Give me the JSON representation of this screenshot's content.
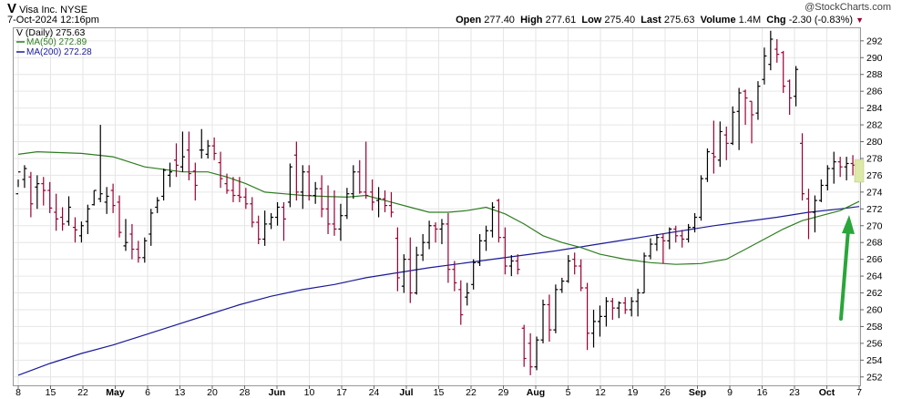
{
  "header": {
    "symbol": "V",
    "company": "Visa Inc.",
    "exchange": "NYSE",
    "datetime": "7-Oct-2024 12:16pm",
    "source": "@StockCharts.com",
    "open_label": "Open",
    "open": "277.40",
    "high_label": "High",
    "high": "277.61",
    "low_label": "Low",
    "low": "275.40",
    "last_label": "Last",
    "last": "275.63",
    "volume_label": "Volume",
    "volume": "1.4M",
    "chg_label": "Chg",
    "chg": "-2.30 (-0.83%)"
  },
  "legend": {
    "price": "V (Daily) 275.63",
    "ma50": "MA(50) 272.89",
    "ma200": "MA(200) 272.28"
  },
  "colors": {
    "up_bar": "#000000",
    "down_bar": "#990033",
    "ma50": "#2e7d20",
    "ma200": "#1a1a99",
    "arrow": "#2aa63a",
    "highlight": "#dde9a9",
    "grid": "#e6e6e6"
  },
  "chart_data": {
    "type": "ohlc",
    "ylim": [
      251,
      293.5
    ],
    "y_ticks": [
      252,
      254,
      256,
      258,
      260,
      262,
      264,
      266,
      268,
      270,
      272,
      274,
      276,
      278,
      280,
      282,
      284,
      286,
      288,
      290,
      292
    ],
    "x_ticks": [
      "8",
      "15",
      "22",
      "May",
      "6",
      "13",
      "20",
      "28",
      "Jun",
      "10",
      "17",
      "24",
      "Jul",
      "15",
      "22",
      "29",
      "Aug",
      "5",
      "12",
      "19",
      "26",
      "Sep",
      "9",
      "16",
      "23",
      "Oct",
      "7"
    ],
    "bold_ticks": [
      "May",
      "Jun",
      "Jul",
      "Aug",
      "Sep",
      "Oct"
    ],
    "bars": [
      [
        273.8,
        274.6,
        275.5,
        276.4
      ],
      [
        275.5,
        277.2,
        274.5,
        276.8
      ],
      [
        275.8,
        276.4,
        271.0,
        272.6
      ],
      [
        274.6,
        276.0,
        272.0,
        275.0
      ],
      [
        275.0,
        275.8,
        272.4,
        274.2
      ],
      [
        274.2,
        275.2,
        271.5,
        272.1
      ],
      [
        271.6,
        273.8,
        269.4,
        270.8
      ],
      [
        271.0,
        272.2,
        269.4,
        270.2
      ],
      [
        270.5,
        273.5,
        270.0,
        272.2
      ],
      [
        269.8,
        271.0,
        268.0,
        269.5
      ],
      [
        268.8,
        270.5,
        268.0,
        270.0
      ],
      [
        270.5,
        272.5,
        269.0,
        272.0
      ],
      [
        272.5,
        274.2,
        272.4,
        274.2
      ],
      [
        273.2,
        282.0,
        272.8,
        273.8
      ],
      [
        272.8,
        274.6,
        271.4,
        273.5
      ],
      [
        274.2,
        275.0,
        271.5,
        272.4
      ],
      [
        272.8,
        273.6,
        268.6,
        269.2
      ],
      [
        267.6,
        270.8,
        267.0,
        268.0
      ],
      [
        269.0,
        270.2,
        266.0,
        267.2
      ],
      [
        267.2,
        268.2,
        265.6,
        266.2
      ],
      [
        266.2,
        268.6,
        265.6,
        268.2
      ],
      [
        269.0,
        272.0,
        267.6,
        271.5
      ],
      [
        272.2,
        273.4,
        271.5,
        273.0
      ],
      [
        273.5,
        276.8,
        273.0,
        276.6
      ],
      [
        276.0,
        277.5,
        274.6,
        276.4
      ],
      [
        277.8,
        279.8,
        275.8,
        277.2
      ],
      [
        277.0,
        281.2,
        276.4,
        278.2
      ],
      [
        279.0,
        281.2,
        275.4,
        276.2
      ],
      [
        276.5,
        277.5,
        273.0,
        274.8
      ],
      [
        279.0,
        281.5,
        278.0,
        279.0
      ],
      [
        278.5,
        280.2,
        278.0,
        279.5
      ],
      [
        279.5,
        280.5,
        277.8,
        278.6
      ],
      [
        277.5,
        278.8,
        274.5,
        275.6
      ],
      [
        275.0,
        276.2,
        273.8,
        274.2
      ],
      [
        274.2,
        275.8,
        272.8,
        273.6
      ],
      [
        273.6,
        275.8,
        272.8,
        273.4
      ],
      [
        273.4,
        274.5,
        272.0,
        272.6
      ],
      [
        272.6,
        273.4,
        269.8,
        270.4
      ],
      [
        270.4,
        271.2,
        267.8,
        268.4
      ],
      [
        268.4,
        271.8,
        267.6,
        270.2
      ],
      [
        270.2,
        271.5,
        269.6,
        271.0
      ],
      [
        271.0,
        272.8,
        270.0,
        272.2
      ],
      [
        272.2,
        272.8,
        268.2,
        270.8
      ],
      [
        272.8,
        277.4,
        272.2,
        277.0
      ],
      [
        278.4,
        280.0,
        273.0,
        274.0
      ],
      [
        274.0,
        277.2,
        272.0,
        276.4
      ],
      [
        276.4,
        277.2,
        273.0,
        273.6
      ],
      [
        273.6,
        275.2,
        272.6,
        274.4
      ],
      [
        274.4,
        276.0,
        271.0,
        272.0
      ],
      [
        272.0,
        274.8,
        269.0,
        270.2
      ],
      [
        270.2,
        274.2,
        268.8,
        269.6
      ],
      [
        269.6,
        272.6,
        268.2,
        271.2
      ],
      [
        271.2,
        274.5,
        270.8,
        273.8
      ],
      [
        273.8,
        277.2,
        273.2,
        276.4
      ],
      [
        276.4,
        277.8,
        273.8,
        274.0
      ],
      [
        274.0,
        280.0,
        273.2,
        273.6
      ],
      [
        274.0,
        275.5,
        271.8,
        272.8
      ],
      [
        273.0,
        274.6,
        271.0,
        273.2
      ],
      [
        273.2,
        274.2,
        271.6,
        272.4
      ],
      [
        272.4,
        274.0,
        271.0,
        271.6
      ],
      [
        268.5,
        269.8,
        262.2,
        263.8
      ],
      [
        262.8,
        266.6,
        262.0,
        266.0
      ],
      [
        266.0,
        268.6,
        260.8,
        262.0
      ],
      [
        262.0,
        267.5,
        261.8,
        266.5
      ],
      [
        266.5,
        269.0,
        265.8,
        268.0
      ],
      [
        268.0,
        270.6,
        267.2,
        270.0
      ],
      [
        270.0,
        270.4,
        268.0,
        269.6
      ],
      [
        269.6,
        270.8,
        267.8,
        270.2
      ],
      [
        270.2,
        271.5,
        263.2,
        264.8
      ],
      [
        264.8,
        265.8,
        262.2,
        263.2
      ],
      [
        262.4,
        263.5,
        258.2,
        259.4
      ],
      [
        261.5,
        263.2,
        260.5,
        262.0
      ],
      [
        263.0,
        266.0,
        262.4,
        265.6
      ],
      [
        265.6,
        269.0,
        265.2,
        268.2
      ],
      [
        268.2,
        270.0,
        267.0,
        269.4
      ],
      [
        269.4,
        272.8,
        268.6,
        272.2
      ],
      [
        273.0,
        273.2,
        268.0,
        268.6
      ],
      [
        268.6,
        269.8,
        264.2,
        265.2
      ],
      [
        265.2,
        266.5,
        264.0,
        265.8
      ],
      [
        265.8,
        266.6,
        264.2,
        264.8
      ],
      [
        257.8,
        258.2,
        253.2,
        254.2
      ],
      [
        256.0,
        257.2,
        252.2,
        253.2
      ],
      [
        253.2,
        256.8,
        252.8,
        256.4
      ],
      [
        256.4,
        261.2,
        256.0,
        260.6
      ],
      [
        260.6,
        261.8,
        256.2,
        257.6
      ],
      [
        257.6,
        263.0,
        257.2,
        262.4
      ],
      [
        262.4,
        263.8,
        262.0,
        263.4
      ],
      [
        263.4,
        266.5,
        263.2,
        265.8
      ],
      [
        266.0,
        266.8,
        264.2,
        265.2
      ],
      [
        265.2,
        266.0,
        262.2,
        262.6
      ],
      [
        262.6,
        263.2,
        255.2,
        257.2
      ],
      [
        257.2,
        260.0,
        255.5,
        258.6
      ],
      [
        258.6,
        260.5,
        256.8,
        259.2
      ],
      [
        259.2,
        261.5,
        258.0,
        261.0
      ],
      [
        261.0,
        261.4,
        258.8,
        260.2
      ],
      [
        260.2,
        261.0,
        259.0,
        260.8
      ],
      [
        260.8,
        261.5,
        259.5,
        260.0
      ],
      [
        260.0,
        261.5,
        259.2,
        261.0
      ],
      [
        261.0,
        262.5,
        259.2,
        262.0
      ],
      [
        262.0,
        266.8,
        262.0,
        266.4
      ],
      [
        266.4,
        268.5,
        266.0,
        267.8
      ],
      [
        267.8,
        269.0,
        267.0,
        268.6
      ],
      [
        268.6,
        269.0,
        265.5,
        268.2
      ],
      [
        268.2,
        269.8,
        267.2,
        269.6
      ],
      [
        269.6,
        270.0,
        268.0,
        268.8
      ],
      [
        268.8,
        269.5,
        267.4,
        268.4
      ],
      [
        268.4,
        270.2,
        268.0,
        269.8
      ],
      [
        269.8,
        271.5,
        269.2,
        271.0
      ],
      [
        271.0,
        276.0,
        270.6,
        275.6
      ],
      [
        275.6,
        279.2,
        275.2,
        278.8
      ],
      [
        278.6,
        282.5,
        276.2,
        278.2
      ],
      [
        277.8,
        282.4,
        277.0,
        281.2
      ],
      [
        280.8,
        281.8,
        277.8,
        279.8
      ],
      [
        279.8,
        284.2,
        279.6,
        283.5
      ],
      [
        283.6,
        286.4,
        279.0,
        285.8
      ],
      [
        286.0,
        286.2,
        282.0,
        285.2
      ],
      [
        284.8,
        284.8,
        279.8,
        283.2
      ],
      [
        283.4,
        287.2,
        282.6,
        286.6
      ],
      [
        287.4,
        291.2,
        286.8,
        290.2
      ],
      [
        289.2,
        293.2,
        288.5,
        292.2
      ],
      [
        291.0,
        292.2,
        289.4,
        290.4
      ],
      [
        290.6,
        290.8,
        285.8,
        286.6
      ],
      [
        287.2,
        287.4,
        283.2,
        285.2
      ],
      [
        285.4,
        289.0,
        284.2,
        288.6
      ],
      [
        279.8,
        281.0,
        273.0,
        273.8
      ],
      [
        273.2,
        274.4,
        268.4,
        271.6
      ],
      [
        271.6,
        273.6,
        269.2,
        273.0
      ],
      [
        273.0,
        275.5,
        272.8,
        274.8
      ],
      [
        274.8,
        277.2,
        274.2,
        276.8
      ],
      [
        276.8,
        278.8,
        275.0,
        277.6
      ],
      [
        277.6,
        278.2,
        275.8,
        277.0
      ],
      [
        277.0,
        278.2,
        275.4,
        277.4
      ],
      [
        277.4,
        278.4,
        276.0,
        277.2
      ],
      [
        277.4,
        277.61,
        275.4,
        275.63
      ]
    ],
    "ma50": [
      [
        0,
        278.5
      ],
      [
        3,
        278.8
      ],
      [
        10,
        278.6
      ],
      [
        15,
        278.2
      ],
      [
        20,
        277.0
      ],
      [
        26,
        276.4
      ],
      [
        30,
        276.4
      ],
      [
        33,
        275.8
      ],
      [
        36,
        275.0
      ],
      [
        39,
        274.0
      ],
      [
        42,
        273.8
      ],
      [
        45,
        273.6
      ],
      [
        48,
        273.5
      ],
      [
        52,
        273.4
      ],
      [
        55,
        273.6
      ],
      [
        58,
        273.0
      ],
      [
        62,
        272.2
      ],
      [
        65,
        271.6
      ],
      [
        68,
        271.6
      ],
      [
        71,
        271.8
      ],
      [
        74,
        272.2
      ],
      [
        77,
        271.4
      ],
      [
        80,
        270.2
      ],
      [
        83,
        268.8
      ],
      [
        86,
        268.0
      ],
      [
        89,
        267.4
      ],
      [
        92,
        266.6
      ],
      [
        96,
        266.0
      ],
      [
        100,
        265.6
      ],
      [
        104,
        265.4
      ],
      [
        108,
        265.5
      ],
      [
        112,
        266.0
      ],
      [
        115,
        267.2
      ],
      [
        118,
        268.4
      ],
      [
        121,
        269.6
      ],
      [
        124,
        270.6
      ],
      [
        127,
        271.2
      ],
      [
        130,
        271.8
      ],
      [
        133,
        272.89
      ]
    ],
    "ma200": [
      [
        0,
        252.2
      ],
      [
        5,
        253.6
      ],
      [
        10,
        254.8
      ],
      [
        15,
        255.8
      ],
      [
        20,
        257.0
      ],
      [
        25,
        258.2
      ],
      [
        30,
        259.4
      ],
      [
        35,
        260.6
      ],
      [
        40,
        261.6
      ],
      [
        45,
        262.4
      ],
      [
        50,
        263.0
      ],
      [
        55,
        263.8
      ],
      [
        60,
        264.4
      ],
      [
        65,
        265.0
      ],
      [
        70,
        265.5
      ],
      [
        75,
        266.0
      ],
      [
        80,
        266.5
      ],
      [
        85,
        267.0
      ],
      [
        90,
        267.6
      ],
      [
        95,
        268.2
      ],
      [
        100,
        268.8
      ],
      [
        105,
        269.4
      ],
      [
        110,
        270.0
      ],
      [
        115,
        270.5
      ],
      [
        120,
        271.0
      ],
      [
        125,
        271.6
      ],
      [
        130,
        272.0
      ],
      [
        133,
        272.28
      ]
    ]
  }
}
